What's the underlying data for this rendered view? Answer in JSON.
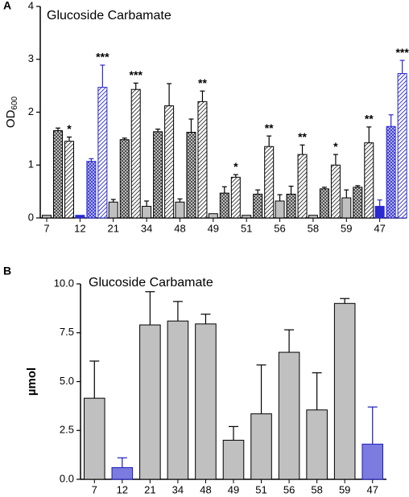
{
  "chart_data": [
    {
      "type": "grouped-bar",
      "panel": "A",
      "title": "Glucoside Carbamate",
      "y_label": "OD",
      "y_label_sub": "600",
      "categories": [
        "7",
        "12",
        "21",
        "34",
        "48",
        "49",
        "51",
        "56",
        "58",
        "59",
        "47"
      ],
      "highlight": [
        1,
        10
      ],
      "color": "#c0c0c0",
      "highlight_color": "#2a2ad0",
      "ylim": [
        0,
        4
      ],
      "yticks": [
        0,
        1,
        2,
        3,
        4
      ],
      "grid": false,
      "series": [
        {
          "pattern": "solid",
          "values": [
            0.05,
            0.05,
            0.3,
            0.22,
            0.3,
            0.08,
            0.05,
            0.32,
            0.05,
            0.38,
            0.22
          ],
          "errors": [
            0,
            0,
            0.05,
            0.1,
            0.06,
            0,
            0,
            0.12,
            0,
            0.15,
            0.12
          ]
        },
        {
          "pattern": "cross",
          "values": [
            1.65,
            1.07,
            1.48,
            1.63,
            1.62,
            0.47,
            0.45,
            0.45,
            0.55,
            0.58,
            1.73
          ],
          "errors": [
            0.05,
            0.05,
            0.03,
            0.05,
            0.25,
            0.12,
            0.08,
            0.15,
            0.03,
            0.03,
            0.22
          ]
        },
        {
          "pattern": "diag",
          "values": [
            1.45,
            2.47,
            2.43,
            2.12,
            2.2,
            0.77,
            1.35,
            1.2,
            1.0,
            1.42,
            2.73
          ],
          "errors": [
            0.08,
            0.42,
            0.12,
            0.42,
            0.2,
            0.05,
            0.2,
            0.18,
            0.2,
            0.3,
            0.25
          ],
          "annotations": [
            "*",
            "***",
            "***",
            null,
            "**",
            "*",
            "**",
            "**",
            "*",
            "**",
            "***"
          ]
        }
      ]
    },
    {
      "type": "bar",
      "panel": "B",
      "title": "Glucoside Carbamate",
      "y_label": "µmol",
      "categories": [
        "7",
        "12",
        "21",
        "34",
        "48",
        "49",
        "51",
        "56",
        "58",
        "59",
        "47"
      ],
      "highlight": [
        1,
        10
      ],
      "color": "#c0c0c0",
      "highlight_color": "#7b7be0",
      "ylim": [
        0,
        10
      ],
      "yticks": [
        {
          "value": 0,
          "label": "0.0"
        },
        2.5,
        {
          "value": 5,
          "label": "5.0"
        },
        7.5,
        {
          "value": 10,
          "label": "10.0"
        }
      ],
      "grid": false,
      "values": [
        4.15,
        0.6,
        7.9,
        8.1,
        7.95,
        2.0,
        3.35,
        6.5,
        3.55,
        9.0,
        1.8
      ],
      "errors": [
        1.9,
        0.5,
        1.7,
        1.0,
        0.5,
        0.7,
        2.5,
        1.15,
        1.9,
        0.25,
        1.9
      ]
    }
  ]
}
